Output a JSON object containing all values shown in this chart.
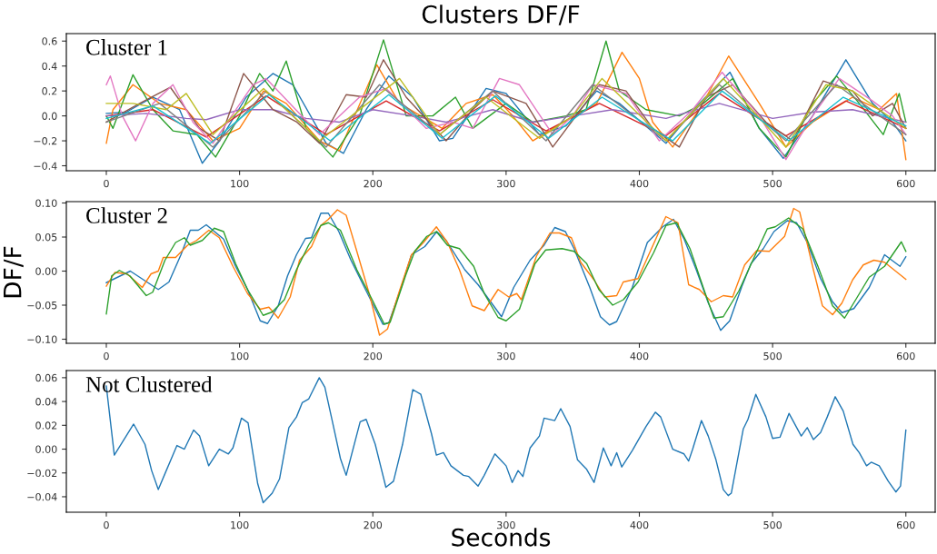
{
  "chart_data": [
    {
      "type": "line",
      "title": "Clusters DF/F",
      "annotations": [
        "Cluster 1"
      ],
      "xlim": [
        -30,
        622
      ],
      "ylim": [
        -0.44,
        0.66
      ],
      "xticks": [
        0,
        100,
        200,
        300,
        400,
        500,
        600
      ],
      "yticks": [
        {
          "value": -0.4,
          "label": "−0.4"
        },
        {
          "value": -0.2,
          "label": "−0.2"
        },
        {
          "value": 0,
          "label": "0.0"
        },
        {
          "value": 0.2,
          "label": "0.2"
        },
        {
          "value": 0.4,
          "label": "0.4"
        },
        {
          "value": 0.6,
          "label": "0.6"
        }
      ],
      "grid": false,
      "series": [
        {
          "color": "#1f77b4",
          "x": [
            0,
            15,
            35,
            55,
            72,
            85,
            105,
            125,
            140,
            165,
            178,
            195,
            212,
            230,
            250,
            260,
            285,
            300,
            325,
            345,
            368,
            385,
            420,
            445,
            468,
            490,
            508,
            530,
            555,
            575,
            590,
            600
          ],
          "values": [
            0.02,
            0.03,
            0.15,
            0.05,
            -0.38,
            -0.2,
            0.15,
            0.34,
            0.25,
            -0.22,
            -0.3,
            0.05,
            0.32,
            0.15,
            -0.2,
            -0.18,
            0.22,
            0.18,
            -0.15,
            -0.08,
            0.2,
            0.1,
            -0.22,
            0.1,
            0.35,
            -0.1,
            -0.34,
            0.0,
            0.45,
            0.1,
            -0.05,
            -0.2
          ]
        },
        {
          "color": "#ff7f0e",
          "x": [
            0,
            5,
            20,
            40,
            60,
            80,
            100,
            118,
            135,
            160,
            175,
            203,
            220,
            252,
            270,
            290,
            305,
            320,
            335,
            368,
            387,
            400,
            410,
            425,
            445,
            467,
            490,
            510,
            530,
            560,
            580,
            593,
            600
          ],
          "values": [
            -0.22,
            0.05,
            0.25,
            0.1,
            0.05,
            -0.2,
            -0.1,
            0.2,
            0.1,
            -0.2,
            -0.28,
            0.41,
            0.1,
            -0.1,
            0.1,
            0.17,
            0.0,
            -0.2,
            -0.1,
            0.1,
            0.51,
            0.3,
            -0.05,
            -0.25,
            0.05,
            0.48,
            0.1,
            -0.25,
            -0.05,
            0.15,
            0.05,
            0.18,
            -0.35
          ]
        },
        {
          "color": "#2ca02c",
          "x": [
            0,
            5,
            20,
            35,
            50,
            68,
            82,
            100,
            115,
            125,
            135,
            150,
            170,
            190,
            208,
            225,
            245,
            262,
            275,
            300,
            320,
            345,
            360,
            375,
            385,
            405,
            430,
            448,
            470,
            490,
            510,
            530,
            548,
            565,
            583,
            595,
            600
          ],
          "values": [
            0.0,
            -0.1,
            0.33,
            0.05,
            -0.12,
            -0.15,
            -0.33,
            0.0,
            0.34,
            0.2,
            0.44,
            -0.1,
            -0.33,
            0.0,
            0.61,
            0.0,
            0.0,
            0.15,
            -0.1,
            0.1,
            -0.05,
            0.0,
            0.05,
            0.6,
            0.2,
            0.05,
            0.0,
            0.1,
            0.3,
            -0.1,
            -0.33,
            0.1,
            0.32,
            0.1,
            -0.15,
            0.18,
            -0.05
          ]
        },
        {
          "color": "#d62728",
          "x": [
            0,
            35,
            75,
            120,
            165,
            210,
            250,
            290,
            330,
            370,
            420,
            460,
            510,
            555,
            590,
            600
          ],
          "values": [
            0.0,
            0.05,
            -0.17,
            0.16,
            -0.15,
            0.12,
            -0.12,
            0.13,
            -0.12,
            0.1,
            -0.16,
            0.18,
            -0.16,
            0.12,
            -0.05,
            -0.1
          ]
        },
        {
          "color": "#9467bd",
          "x": [
            0,
            30,
            60,
            75,
            100,
            125,
            150,
            175,
            200,
            230,
            255,
            290,
            320,
            350,
            380,
            420,
            460,
            500,
            530,
            560,
            600
          ],
          "values": [
            0.0,
            0.02,
            -0.02,
            -0.03,
            0.05,
            0.05,
            -0.02,
            -0.05,
            0.05,
            0.0,
            -0.05,
            0.05,
            -0.05,
            0.0,
            0.05,
            -0.02,
            0.1,
            -0.02,
            0.03,
            0.05,
            -0.05
          ]
        },
        {
          "color": "#8c564b",
          "x": [
            0,
            25,
            48,
            70,
            85,
            103,
            125,
            143,
            160,
            180,
            195,
            208,
            225,
            255,
            275,
            290,
            315,
            335,
            370,
            390,
            410,
            430,
            450,
            470,
            495,
            515,
            538,
            560,
            575,
            590,
            600
          ],
          "values": [
            -0.05,
            0.1,
            0.23,
            -0.1,
            -0.2,
            0.34,
            0.05,
            -0.05,
            -0.22,
            0.17,
            0.15,
            0.45,
            0.15,
            -0.2,
            0.05,
            0.2,
            0.1,
            -0.25,
            0.25,
            0.2,
            -0.1,
            -0.25,
            0.15,
            0.25,
            -0.05,
            -0.2,
            0.28,
            0.2,
            0.0,
            0.1,
            -0.1
          ]
        },
        {
          "color": "#e377c2",
          "x": [
            0,
            3,
            12,
            22,
            35,
            50,
            65,
            80,
            110,
            120,
            160,
            190,
            210,
            240,
            260,
            275,
            285,
            295,
            310,
            335,
            350,
            365,
            390,
            415,
            440,
            462,
            490,
            510,
            530,
            550,
            575,
            590,
            600
          ],
          "values": [
            0.25,
            0.32,
            0.0,
            -0.2,
            0.1,
            0.25,
            -0.05,
            -0.22,
            0.25,
            0.3,
            -0.15,
            0.15,
            0.22,
            -0.1,
            -0.05,
            -0.1,
            0.1,
            0.3,
            0.25,
            -0.15,
            0.0,
            0.25,
            0.18,
            -0.2,
            0.05,
            0.35,
            0.0,
            -0.35,
            0.0,
            0.3,
            0.12,
            0.0,
            -0.15
          ]
        },
        {
          "color": "#7f7f7f",
          "x": [
            0,
            40,
            80,
            120,
            165,
            205,
            250,
            290,
            330,
            365,
            420,
            460,
            510,
            548,
            600
          ],
          "values": [
            -0.05,
            0.1,
            -0.25,
            0.2,
            -0.25,
            0.25,
            -0.15,
            0.2,
            -0.2,
            0.25,
            -0.2,
            0.25,
            -0.2,
            0.25,
            -0.15
          ]
        },
        {
          "color": "#bcbd22",
          "x": [
            0,
            20,
            45,
            60,
            80,
            118,
            160,
            220,
            250,
            285,
            325,
            350,
            372,
            420,
            463,
            510,
            540,
            560,
            600
          ],
          "values": [
            0.1,
            0.1,
            0.05,
            0.18,
            -0.15,
            0.22,
            -0.2,
            0.3,
            -0.15,
            0.15,
            -0.18,
            0.0,
            0.3,
            -0.2,
            0.3,
            -0.25,
            0.25,
            0.2,
            -0.1
          ]
        },
        {
          "color": "#17becf",
          "x": [
            0,
            35,
            78,
            122,
            168,
            212,
            252,
            292,
            332,
            372,
            425,
            462,
            512,
            553,
            600
          ],
          "values": [
            -0.02,
            0.08,
            -0.22,
            0.17,
            -0.2,
            0.17,
            -0.18,
            0.16,
            -0.18,
            0.15,
            -0.2,
            0.2,
            -0.2,
            0.15,
            -0.08
          ]
        }
      ]
    },
    {
      "type": "line",
      "ylabel": "DF/F",
      "annotations": [
        "Cluster 2"
      ],
      "xlim": [
        -30,
        622
      ],
      "ylim": [
        -0.106,
        0.102
      ],
      "xticks": [
        0,
        100,
        200,
        300,
        400,
        500,
        600
      ],
      "yticks": [
        {
          "value": -0.1,
          "label": "−0.10"
        },
        {
          "value": -0.05,
          "label": "−0.05"
        },
        {
          "value": 0,
          "label": "0.00"
        },
        {
          "value": 0.05,
          "label": "0.05"
        },
        {
          "value": 0.1,
          "label": "0.10"
        }
      ],
      "grid": false,
      "series": [
        {
          "color": "#1f77b4",
          "x": [
            0,
            18,
            39,
            47,
            56,
            63,
            69,
            75,
            88,
            97,
            106,
            115.5,
            121,
            129,
            136,
            142.7,
            149.5,
            154,
            161,
            166.6,
            174.5,
            183.6,
            195,
            207.5,
            212,
            222,
            229,
            239,
            248,
            255,
            269,
            279,
            296.6,
            305.7,
            318,
            328.5,
            336.5,
            344.5,
            351,
            362.8,
            370.8,
            377.6,
            383,
            394.7,
            406,
            417.5,
            425.6,
            433.6,
            442.7,
            451.8,
            461,
            467.8,
            477,
            483.8,
            493,
            501,
            511,
            518,
            526,
            536,
            545,
            552,
            561,
            572.5,
            584,
            595.6,
            600
          ],
          "values": [
            -0.017,
            0.0,
            -0.027,
            -0.016,
            0.024,
            0.06,
            0.06,
            0.068,
            0.047,
            0.007,
            -0.027,
            -0.073,
            -0.077,
            -0.051,
            -0.007,
            0.024,
            0.048,
            0.049,
            0.085,
            0.085,
            0.058,
            0.016,
            -0.029,
            -0.078,
            -0.076,
            -0.02,
            0.024,
            0.036,
            0.058,
            0.045,
            0.002,
            -0.02,
            -0.067,
            -0.024,
            0.016,
            0.038,
            0.064,
            0.058,
            0.033,
            -0.024,
            -0.067,
            -0.079,
            -0.074,
            -0.024,
            0.042,
            0.065,
            0.076,
            0.047,
            0.002,
            -0.047,
            -0.087,
            -0.073,
            -0.022,
            0.011,
            0.033,
            0.058,
            0.074,
            0.071,
            0.042,
            -0.011,
            -0.045,
            -0.061,
            -0.055,
            -0.024,
            0.024,
            0.007,
            0.021
          ]
        },
        {
          "color": "#ff7f0e",
          "x": [
            0,
            6.4,
            15.5,
            27,
            33.6,
            39,
            42.7,
            52,
            61,
            67.7,
            77,
            84.8,
            95,
            106,
            115.5,
            122,
            129,
            138,
            145,
            154,
            161,
            166.6,
            173.4,
            180,
            188,
            198,
            205,
            211,
            220,
            229,
            238,
            247.7,
            256,
            265,
            274.5,
            283.6,
            294,
            302,
            308,
            311.4,
            322.8,
            333,
            340,
            349,
            356,
            366,
            374,
            383,
            387.9,
            399,
            410.7,
            419.9,
            429,
            437,
            445,
            454,
            463,
            470,
            479,
            488,
            497.5,
            509,
            515.8,
            520.3,
            530.6,
            537.4,
            545,
            552,
            560,
            568,
            576,
            584,
            600
          ],
          "values": [
            -0.022,
            -0.002,
            -0.004,
            -0.024,
            -0.004,
            0.0,
            0.02,
            0.02,
            0.038,
            0.045,
            0.06,
            0.049,
            0.007,
            -0.033,
            -0.056,
            -0.053,
            -0.069,
            -0.038,
            0.016,
            0.036,
            0.067,
            0.076,
            0.09,
            0.082,
            0.029,
            -0.038,
            -0.094,
            -0.085,
            -0.029,
            0.024,
            0.042,
            0.065,
            0.042,
            0.002,
            -0.051,
            -0.058,
            -0.027,
            -0.038,
            -0.033,
            -0.042,
            0.022,
            0.056,
            0.056,
            0.049,
            0.013,
            -0.013,
            -0.038,
            -0.036,
            -0.016,
            -0.011,
            0.04,
            0.08,
            0.071,
            -0.02,
            -0.027,
            -0.045,
            -0.036,
            -0.038,
            0.009,
            0.03,
            0.029,
            0.051,
            0.092,
            0.087,
            0.002,
            -0.051,
            -0.064,
            -0.047,
            -0.013,
            0.009,
            0.016,
            0.013,
            -0.012
          ]
        },
        {
          "color": "#2ca02c",
          "x": [
            0,
            4,
            9.8,
            17.7,
            30,
            34.8,
            44,
            52,
            58.6,
            63,
            72,
            81,
            88,
            97,
            106,
            117.7,
            124.5,
            133.6,
            142.7,
            151.8,
            161,
            166.6,
            175.7,
            188,
            199.5,
            208.6,
            213,
            224.5,
            231.4,
            240.5,
            247.7,
            256,
            265,
            275.7,
            283.6,
            294,
            300,
            310,
            321.7,
            329.7,
            342,
            351,
            360.5,
            369.6,
            380,
            388,
            399,
            410.7,
            420,
            428,
            438,
            449.5,
            456,
            463,
            474.7,
            484,
            496,
            502,
            512,
            522.6,
            534,
            545,
            554,
            563.6,
            572.5,
            584,
            596.6,
            600
          ],
          "values": [
            -0.063,
            -0.007,
            0.001,
            -0.007,
            -0.036,
            -0.031,
            0.016,
            0.042,
            0.049,
            0.038,
            0.045,
            0.063,
            0.058,
            0.011,
            -0.027,
            -0.065,
            -0.06,
            -0.042,
            0.002,
            0.038,
            0.067,
            0.071,
            0.06,
            0.002,
            -0.042,
            -0.078,
            -0.075,
            -0.007,
            0.029,
            0.051,
            0.058,
            0.038,
            0.033,
            0.007,
            -0.033,
            -0.068,
            -0.073,
            -0.056,
            0.011,
            0.031,
            0.033,
            0.029,
            0.011,
            -0.027,
            -0.05,
            -0.042,
            -0.016,
            0.027,
            0.067,
            0.071,
            0.033,
            -0.033,
            -0.069,
            -0.067,
            -0.029,
            0.011,
            0.062,
            0.065,
            0.078,
            0.062,
            0.007,
            -0.051,
            -0.069,
            -0.038,
            -0.009,
            0.007,
            0.043,
            0.029
          ]
        }
      ]
    },
    {
      "type": "line",
      "xlabel": "Seconds",
      "annotations": [
        "Not Clustered"
      ],
      "xlim": [
        -30,
        622
      ],
      "ylim": [
        -0.053,
        0.066
      ],
      "xticks": [
        0,
        100,
        200,
        300,
        400,
        500,
        600
      ],
      "yticks": [
        {
          "value": -0.04,
          "label": "−0.04"
        },
        {
          "value": -0.02,
          "label": "−0.02"
        },
        {
          "value": 0,
          "label": "0.00"
        },
        {
          "value": 0.02,
          "label": "0.02"
        },
        {
          "value": 0.04,
          "label": "0.04"
        },
        {
          "value": 0.06,
          "label": "0.06"
        }
      ],
      "grid": false,
      "series": [
        {
          "color": "#1f77b4",
          "x": [
            0,
            6,
            20.5,
            29,
            34,
            39,
            45,
            53,
            58.6,
            65.5,
            70,
            76.8,
            84.8,
            91.6,
            95,
            101.4,
            106.4,
            113.6,
            117.7,
            124.5,
            130,
            137,
            142.7,
            147,
            151.8,
            159.8,
            164,
            169.5,
            175.7,
            180,
            190.5,
            195,
            201.8,
            209.8,
            215.5,
            222.3,
            230,
            236,
            244,
            247.7,
            253,
            258.6,
            268,
            272,
            279,
            283.6,
            291.6,
            300,
            304.6,
            309,
            312.6,
            318,
            325,
            328.5,
            336.5,
            341,
            348,
            353.6,
            360.5,
            366,
            373,
            378.8,
            383,
            386.8,
            394.8,
            405,
            412,
            416,
            425,
            433.5,
            437,
            440,
            446.6,
            451.7,
            457.5,
            463,
            466.7,
            469,
            474.5,
            478,
            481.5,
            487.4,
            495,
            500,
            505.5,
            512.3,
            521.5,
            526,
            530.6,
            536,
            541,
            547,
            553,
            560.3,
            565,
            570.5,
            574,
            580,
            586.8,
            592.5,
            596,
            600
          ],
          "values": [
            0.053,
            -0.005,
            0.021,
            0.004,
            -0.018,
            -0.034,
            -0.018,
            0.003,
            0.0,
            0.016,
            0.011,
            -0.014,
            0.0,
            -0.004,
            0.001,
            0.026,
            0.022,
            -0.029,
            -0.045,
            -0.037,
            -0.025,
            0.018,
            0.027,
            0.039,
            0.042,
            0.06,
            0.052,
            0.024,
            -0.008,
            -0.022,
            0.023,
            0.025,
            0.004,
            -0.032,
            -0.027,
            0.004,
            0.05,
            0.046,
            0.013,
            -0.005,
            -0.003,
            -0.014,
            -0.022,
            -0.023,
            -0.031,
            -0.022,
            -0.004,
            -0.014,
            -0.028,
            -0.018,
            -0.023,
            0.001,
            0.011,
            0.026,
            0.024,
            0.034,
            0.019,
            -0.009,
            -0.017,
            -0.028,
            0.001,
            -0.014,
            -0.003,
            -0.015,
            -0.001,
            0.019,
            0.031,
            0.027,
            0.0,
            -0.004,
            -0.01,
            0.0,
            0.024,
            0.011,
            -0.009,
            -0.034,
            -0.039,
            -0.037,
            -0.004,
            0.017,
            0.025,
            0.046,
            0.027,
            0.009,
            0.01,
            0.03,
            0.011,
            0.018,
            0.008,
            0.014,
            0.027,
            0.044,
            0.032,
            0.004,
            -0.003,
            -0.014,
            -0.011,
            -0.014,
            -0.027,
            -0.036,
            -0.031,
            0.016
          ]
        }
      ]
    }
  ]
}
